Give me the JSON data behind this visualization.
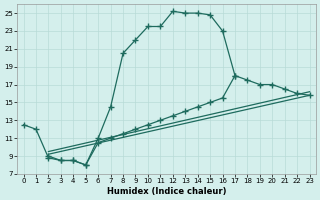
{
  "xlabel": "Humidex (Indice chaleur)",
  "bg_color": "#d4efec",
  "grid_color": "#b8dbd7",
  "line_color": "#1e6b5e",
  "xlim": [
    -0.5,
    23.5
  ],
  "ylim": [
    7,
    26
  ],
  "xticks": [
    0,
    1,
    2,
    3,
    4,
    5,
    6,
    7,
    8,
    9,
    10,
    11,
    12,
    13,
    14,
    15,
    16,
    17,
    18,
    19,
    20,
    21,
    22,
    23
  ],
  "yticks": [
    7,
    9,
    11,
    13,
    15,
    17,
    19,
    21,
    23,
    25
  ],
  "curve1_x": [
    0,
    1,
    2,
    3,
    4,
    5,
    6,
    7,
    8,
    9,
    10,
    11,
    12,
    13,
    14,
    15,
    16,
    17
  ],
  "curve1_y": [
    12.5,
    12.0,
    8.8,
    8.5,
    8.5,
    8.0,
    11.0,
    14.5,
    20.5,
    22.0,
    23.5,
    23.5,
    25.2,
    25.0,
    25.0,
    24.8,
    23.0,
    18.0
  ],
  "curve2_x": [
    2,
    3,
    4,
    5,
    6,
    7,
    8,
    9,
    10,
    11,
    12,
    13,
    14,
    15,
    16,
    17,
    18,
    19,
    20,
    21,
    22,
    23
  ],
  "curve2_y": [
    9.0,
    8.5,
    8.5,
    8.0,
    10.5,
    11.0,
    11.5,
    12.0,
    12.5,
    13.0,
    13.5,
    14.0,
    14.5,
    15.0,
    15.5,
    18.0,
    17.5,
    17.0,
    17.0,
    16.5,
    16.0,
    15.8
  ],
  "line3_x": [
    2,
    23
  ],
  "line3_y": [
    9.2,
    15.8
  ],
  "line4_x": [
    2,
    23
  ],
  "line4_y": [
    9.5,
    16.2
  ]
}
